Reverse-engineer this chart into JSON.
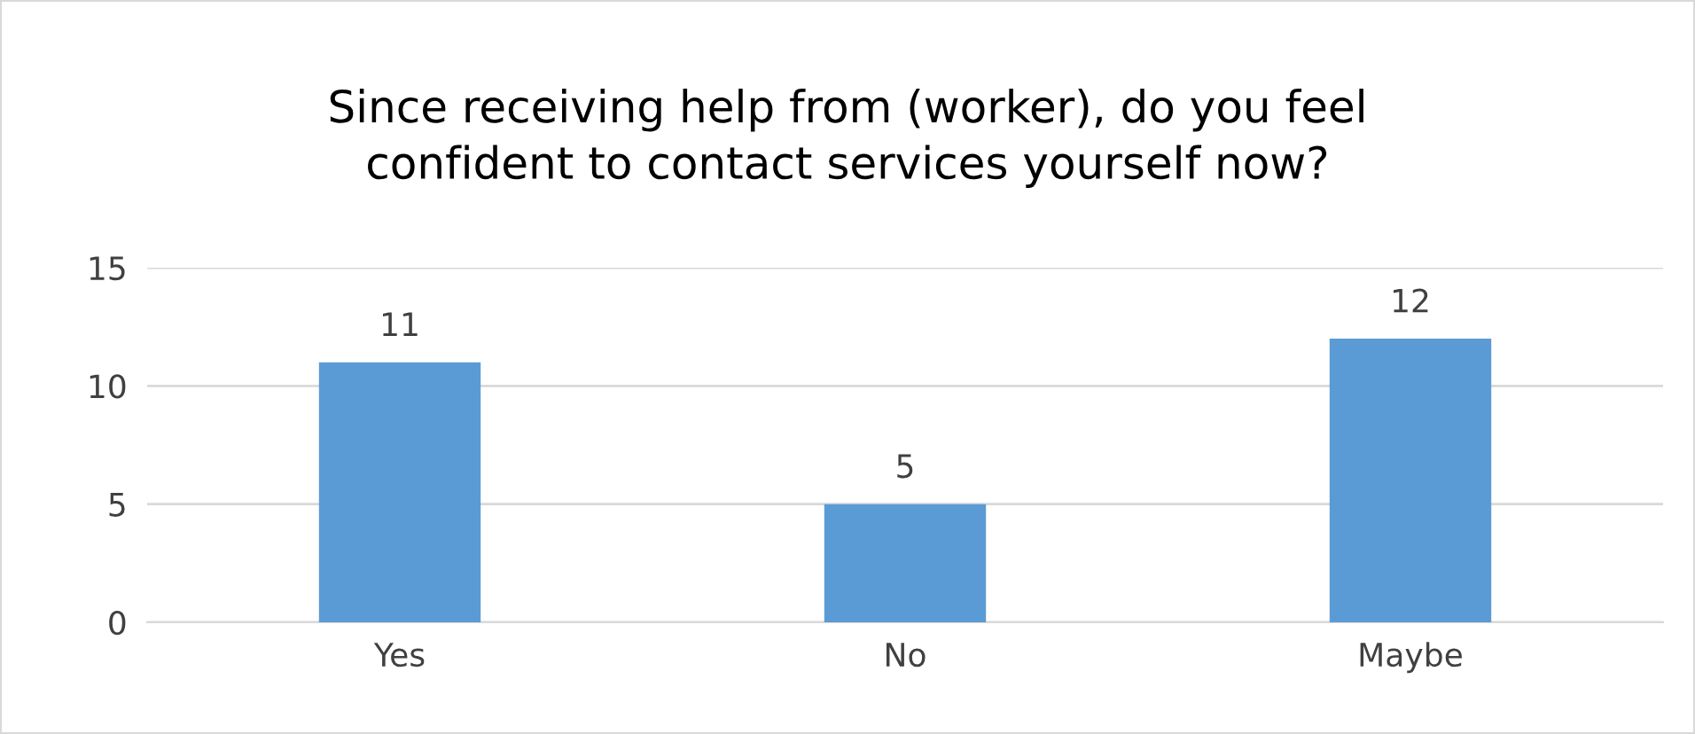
{
  "chart_data": {
    "type": "bar",
    "title": "Since receiving help from (worker), do you feel\nconfident to contact services yourself now?",
    "categories": [
      "Yes",
      "No",
      "Maybe"
    ],
    "values": [
      11,
      5,
      12
    ],
    "color": "#5b9bd5",
    "ylim": [
      0,
      15
    ],
    "yticks": [
      0,
      5,
      10,
      15
    ],
    "grid": "y",
    "data_labels": true
  }
}
